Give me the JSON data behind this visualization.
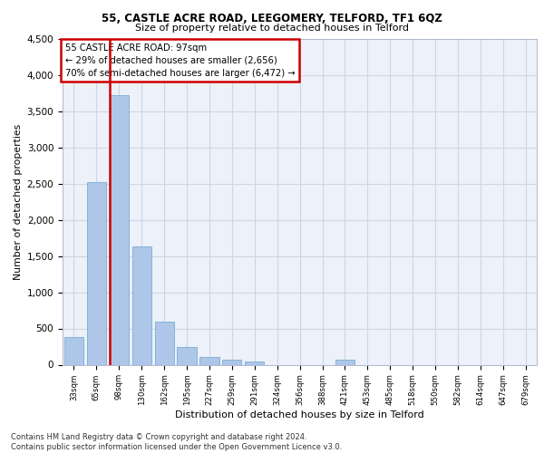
{
  "title1": "55, CASTLE ACRE ROAD, LEEGOMERY, TELFORD, TF1 6QZ",
  "title2": "Size of property relative to detached houses in Telford",
  "xlabel": "Distribution of detached houses by size in Telford",
  "ylabel": "Number of detached properties",
  "categories": [
    "33sqm",
    "65sqm",
    "98sqm",
    "130sqm",
    "162sqm",
    "195sqm",
    "227sqm",
    "259sqm",
    "291sqm",
    "324sqm",
    "356sqm",
    "388sqm",
    "421sqm",
    "453sqm",
    "485sqm",
    "518sqm",
    "550sqm",
    "582sqm",
    "614sqm",
    "647sqm",
    "679sqm"
  ],
  "values": [
    380,
    2520,
    3720,
    1630,
    600,
    245,
    105,
    65,
    50,
    0,
    0,
    0,
    65,
    0,
    0,
    0,
    0,
    0,
    0,
    0,
    0
  ],
  "bar_color": "#aec6e8",
  "bar_edge_color": "#7aadd4",
  "vline_color": "#cc0000",
  "vline_x_index": 2,
  "annotation_text": "55 CASTLE ACRE ROAD: 97sqm\n← 29% of detached houses are smaller (2,656)\n70% of semi-detached houses are larger (6,472) →",
  "annotation_box_color": "#cc0000",
  "ylim": [
    0,
    4500
  ],
  "yticks": [
    0,
    500,
    1000,
    1500,
    2000,
    2500,
    3000,
    3500,
    4000,
    4500
  ],
  "grid_color": "#cdd5e8",
  "background_color": "#edf1f9",
  "footer": "Contains HM Land Registry data © Crown copyright and database right 2024.\nContains public sector information licensed under the Open Government Licence v3.0."
}
